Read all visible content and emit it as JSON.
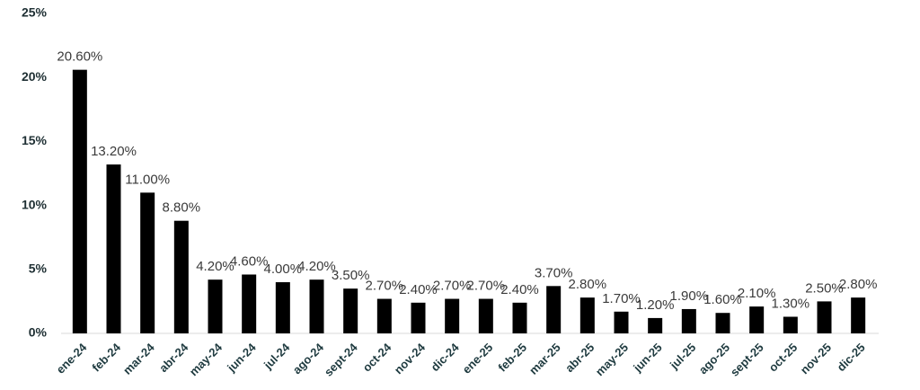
{
  "chart_data": {
    "type": "bar",
    "categories": [
      "ene-24",
      "feb-24",
      "mar-24",
      "abr-24",
      "may-24",
      "jun-24",
      "jul-24",
      "ago-24",
      "sept-24",
      "oct-24",
      "nov-24",
      "dic-24",
      "ene-25",
      "feb-25",
      "mar-25",
      "abr-25",
      "may-25",
      "jun-25",
      "jul-25",
      "ago-25",
      "sept-25",
      "oct-25",
      "nov-25",
      "dic-25"
    ],
    "values": [
      20.6,
      13.2,
      11.0,
      8.8,
      4.2,
      4.6,
      4.0,
      4.2,
      3.5,
      2.7,
      2.4,
      2.7,
      2.7,
      2.4,
      3.7,
      2.8,
      1.7,
      1.2,
      1.9,
      1.6,
      2.1,
      1.3,
      2.5,
      2.8
    ],
    "value_labels": [
      "20.60%",
      "13.20%",
      "11.00%",
      "8.80%",
      "4.20%",
      "4.60%",
      "4.00%",
      "4.20%",
      "3.50%",
      "2.70%",
      "2.40%",
      "2.70%",
      "2.70%",
      "2.40%",
      "3.70%",
      "2.80%",
      "1.70%",
      "1.20%",
      "1.90%",
      "1.60%",
      "2.10%",
      "1.30%",
      "2.50%",
      "2.80%"
    ],
    "color": "#000000",
    "ylim": [
      0,
      25
    ],
    "yticks": [
      {
        "value": 0,
        "label": "0%"
      },
      {
        "value": 5,
        "label": "5%"
      },
      {
        "value": 10,
        "label": "10%"
      },
      {
        "value": 15,
        "label": "15%"
      },
      {
        "value": 20,
        "label": "20%"
      },
      {
        "value": 25,
        "label": "25%"
      }
    ],
    "grid": false
  }
}
